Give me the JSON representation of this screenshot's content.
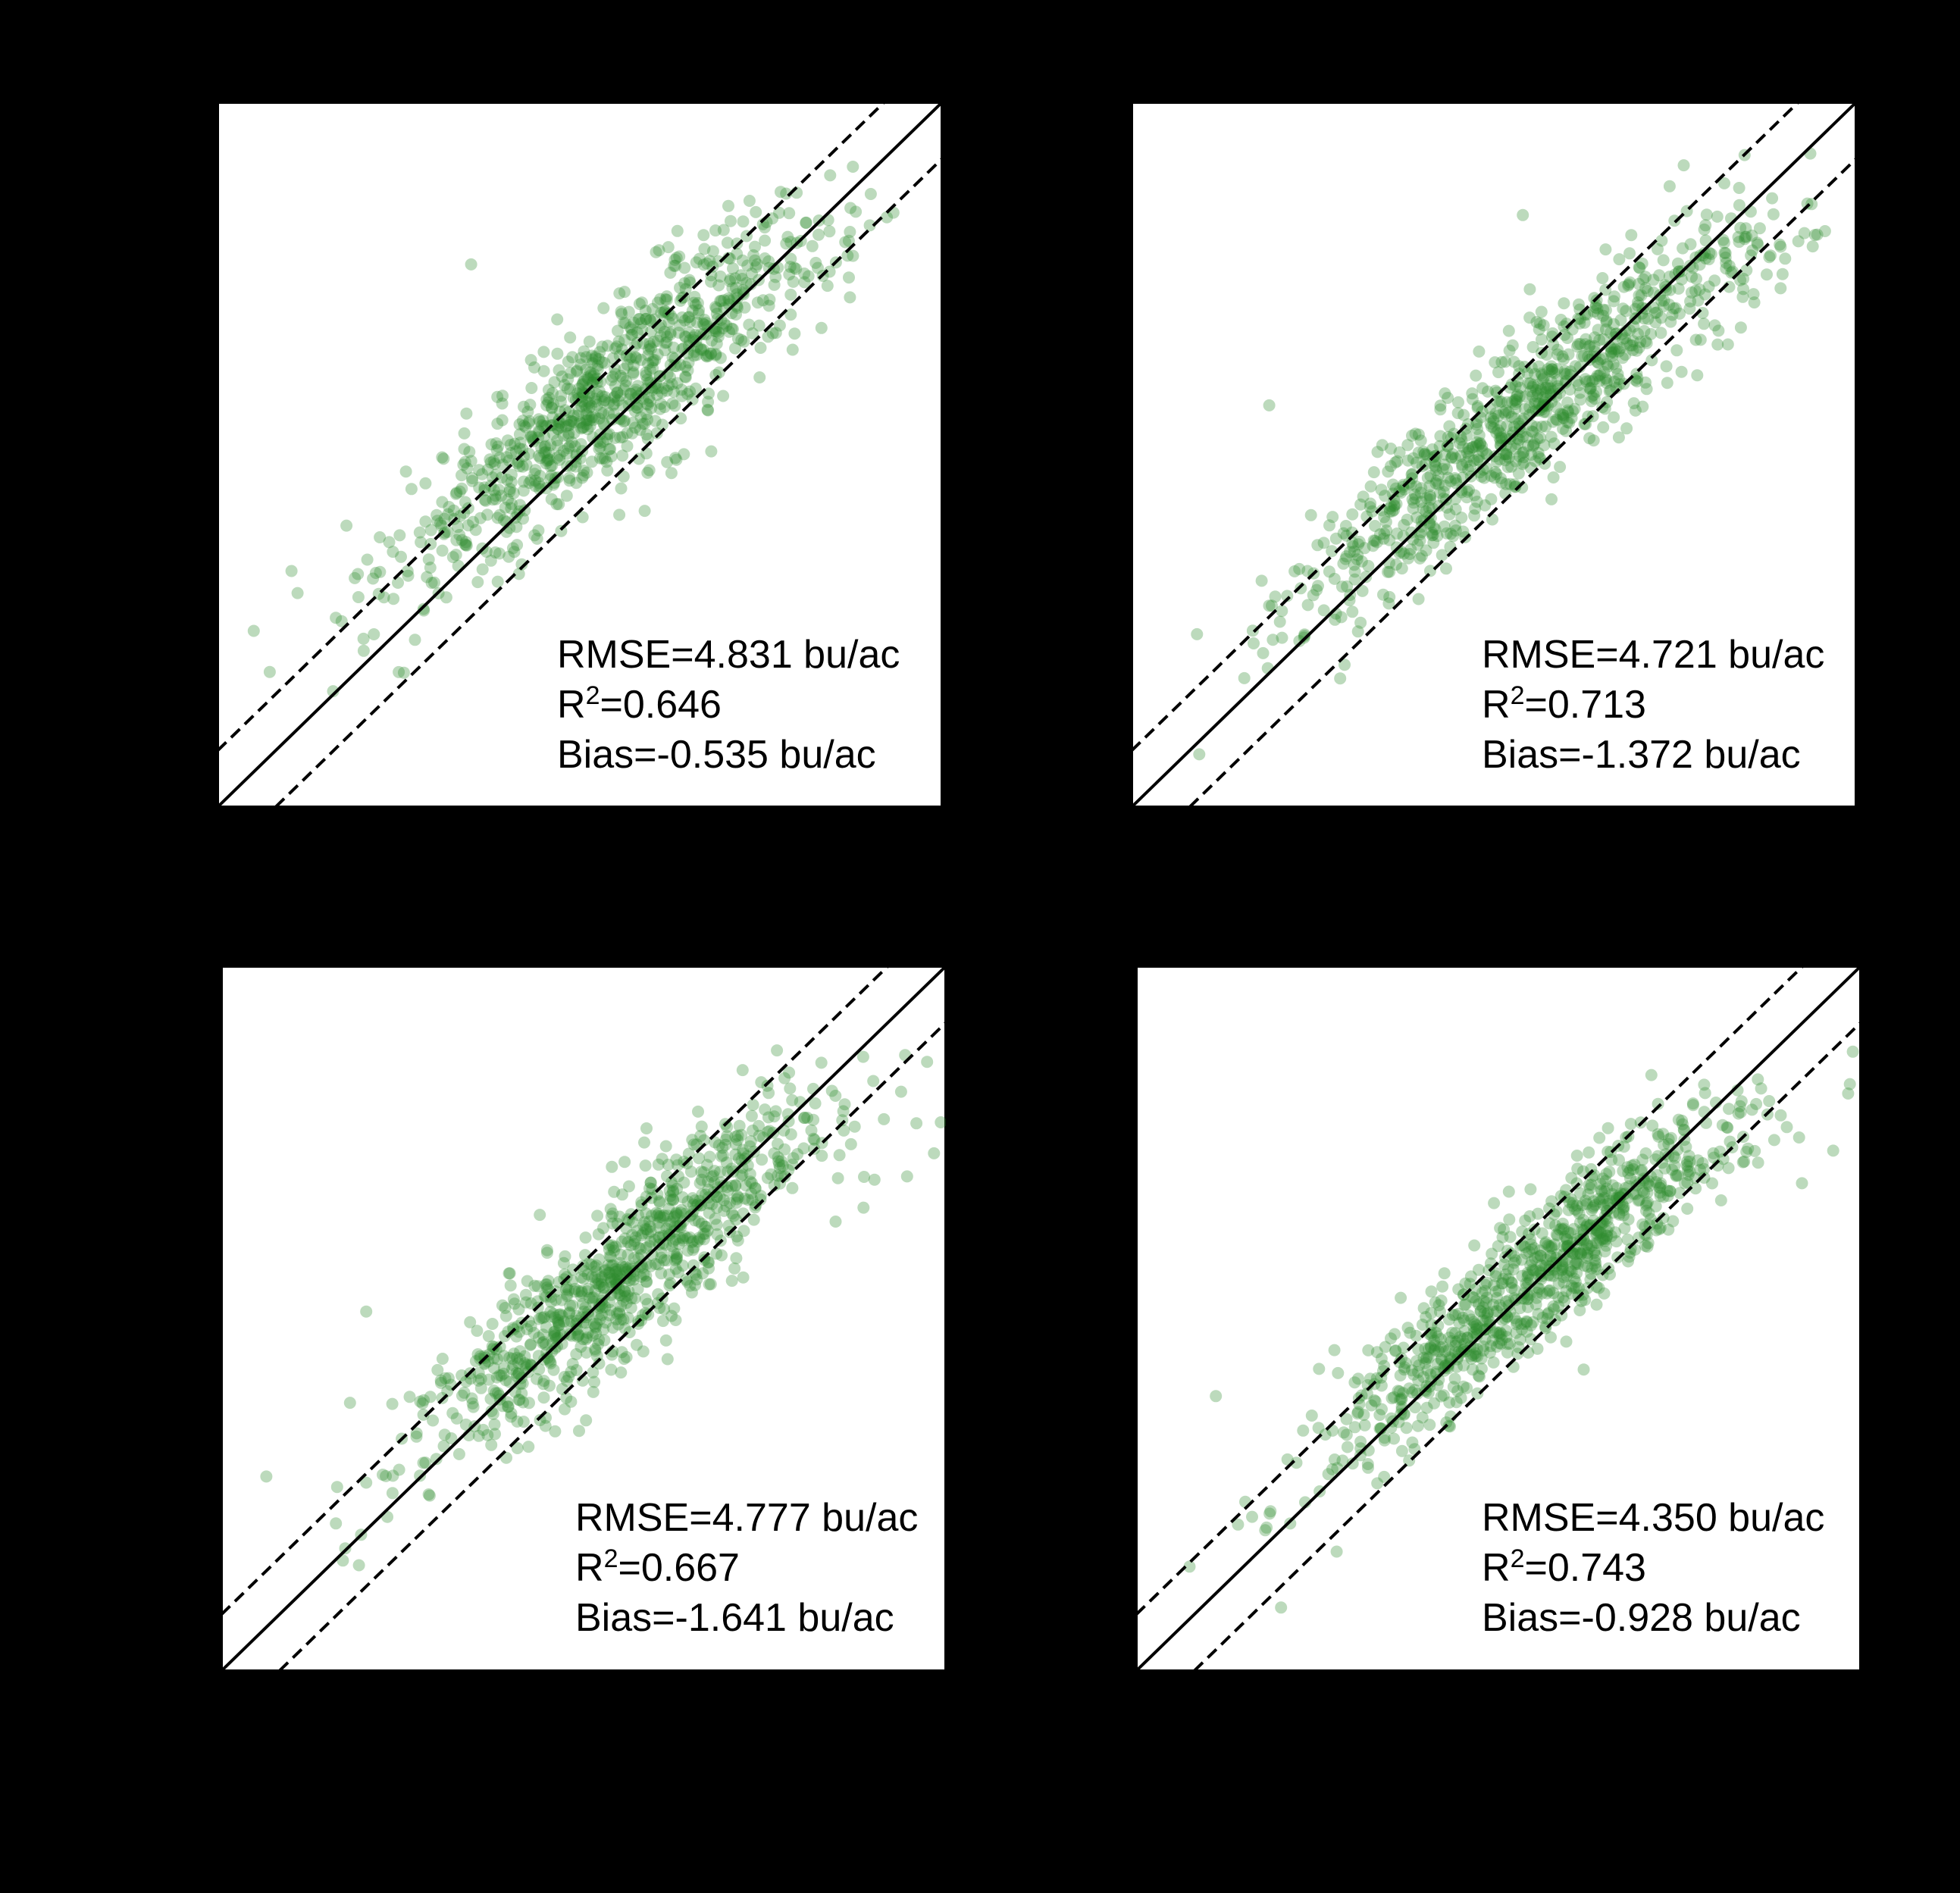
{
  "colors": {
    "background": "#000000",
    "plot_background": "#ffffff",
    "points": "#2e8b2e",
    "lines": "#000000"
  },
  "chart_data": [
    {
      "type": "scatter",
      "title": "",
      "xlabel": "",
      "ylabel": "",
      "xlim": [
        0,
        100
      ],
      "ylim": [
        0,
        100
      ],
      "grid": false,
      "reference_lines": [
        {
          "style": "solid",
          "slope": 1,
          "intercept": 0
        },
        {
          "style": "dashed",
          "slope": 1,
          "intercept": 8
        },
        {
          "style": "dashed",
          "slope": 1,
          "intercept": -8
        }
      ],
      "stats": {
        "rmse_label": "RMSE=",
        "rmse": "4.831 bu/ac",
        "r2_base": "R",
        "r2_sup": "2",
        "r2": "=0.646",
        "bias_label": "Bias=",
        "bias": "-0.535 bu/ac"
      },
      "points": {
        "count": 900,
        "xlim": [
          0,
          100
        ],
        "x_range": [
          0,
          100
        ],
        "x_mean": 55,
        "x_sd": 15,
        "ref_x": 60,
        "slope_near": 0.78,
        "slope_hi": 0.3,
        "bend_x": 80,
        "y_offset": 3,
        "noise_sd": 6,
        "outliers": [
          [
            35,
            77
          ],
          [
            5,
            25
          ]
        ]
      }
    },
    {
      "type": "scatter",
      "title": "",
      "xlabel": "",
      "ylabel": "",
      "xlim": [
        0,
        100
      ],
      "ylim": [
        0,
        100
      ],
      "grid": false,
      "reference_lines": [
        {
          "style": "solid",
          "slope": 1,
          "intercept": 0
        },
        {
          "style": "dashed",
          "slope": 1,
          "intercept": 8
        },
        {
          "style": "dashed",
          "slope": 1,
          "intercept": -8
        }
      ],
      "stats": {
        "rmse_label": "RMSE=",
        "rmse": "4.721 bu/ac",
        "r2_base": "R",
        "r2_sup": "2",
        "r2": "=0.713",
        "bias_label": "Bias=",
        "bias": "-1.372 bu/ac"
      },
      "points": {
        "count": 900,
        "xlim": [
          0,
          100
        ],
        "x_range": [
          0,
          100
        ],
        "x_mean": 55,
        "x_sd": 16,
        "ref_x": 60,
        "slope_near": 0.82,
        "slope_hi": 0.35,
        "bend_x": 82,
        "y_offset": 0,
        "noise_sd": 5.5,
        "outliers": [
          [
            54,
            84
          ],
          [
            19,
            57
          ]
        ]
      }
    },
    {
      "type": "scatter",
      "title": "",
      "xlabel": "",
      "ylabel": "",
      "xlim": [
        0,
        100
      ],
      "ylim": [
        0,
        100
      ],
      "grid": false,
      "reference_lines": [
        {
          "style": "solid",
          "slope": 1,
          "intercept": 0
        },
        {
          "style": "dashed",
          "slope": 1,
          "intercept": 8
        },
        {
          "style": "dashed",
          "slope": 1,
          "intercept": -8
        }
      ],
      "stats": {
        "rmse_label": "RMSE=",
        "rmse": "4.777 bu/ac",
        "r2_base": "R",
        "r2_sup": "2",
        "r2": "=0.667",
        "bias_label": "Bias=",
        "bias": "-1.641 bu/ac"
      },
      "points": {
        "count": 900,
        "xlim": [
          0,
          100
        ],
        "x_range": [
          0,
          100
        ],
        "x_mean": 55,
        "x_sd": 15,
        "ref_x": 60,
        "slope_near": 0.8,
        "slope_hi": 0.25,
        "bend_x": 78,
        "y_offset": 0,
        "noise_sd": 6,
        "outliers": [
          [
            20,
            51
          ],
          [
            19,
            15
          ]
        ]
      }
    },
    {
      "type": "scatter",
      "title": "",
      "xlabel": "",
      "ylabel": "",
      "xlim": [
        0,
        100
      ],
      "ylim": [
        0,
        100
      ],
      "grid": false,
      "reference_lines": [
        {
          "style": "solid",
          "slope": 1,
          "intercept": 0
        },
        {
          "style": "dashed",
          "slope": 1,
          "intercept": 8
        },
        {
          "style": "dashed",
          "slope": 1,
          "intercept": -8
        }
      ],
      "stats": {
        "rmse_label": "RMSE=",
        "rmse": "4.350 bu/ac",
        "r2_base": "R",
        "r2_sup": "2",
        "r2": "=0.743",
        "bias_label": "Bias=",
        "bias": "-0.928 bu/ac"
      },
      "points": {
        "count": 900,
        "xlim": [
          0,
          100
        ],
        "x_range": [
          0,
          100
        ],
        "x_mean": 55,
        "x_sd": 15,
        "ref_x": 60,
        "slope_near": 0.85,
        "slope_hi": 0.35,
        "bend_x": 80,
        "y_offset": 0,
        "noise_sd": 5,
        "outliers": [
          [
            11,
            39
          ],
          [
            20,
            9
          ]
        ]
      }
    }
  ]
}
